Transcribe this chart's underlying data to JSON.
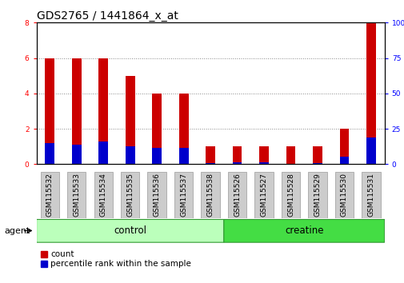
{
  "title": "GDS2765 / 1441864_x_at",
  "samples": [
    "GSM115532",
    "GSM115533",
    "GSM115534",
    "GSM115535",
    "GSM115536",
    "GSM115537",
    "GSM115538",
    "GSM115526",
    "GSM115527",
    "GSM115528",
    "GSM115529",
    "GSM115530",
    "GSM115531"
  ],
  "count": [
    6.0,
    6.0,
    6.0,
    5.0,
    4.0,
    4.0,
    1.0,
    1.0,
    1.0,
    1.0,
    1.0,
    2.0,
    8.0
  ],
  "percentile": [
    1.2,
    1.1,
    1.3,
    1.0,
    0.9,
    0.9,
    0.05,
    0.1,
    0.1,
    0.02,
    0.05,
    0.4,
    1.5
  ],
  "ylim_left": [
    0,
    8
  ],
  "ylim_right": [
    0,
    100
  ],
  "yticks_left": [
    0,
    2,
    4,
    6,
    8
  ],
  "yticks_right": [
    0,
    25,
    50,
    75,
    100
  ],
  "bar_color": "#cc0000",
  "percentile_color": "#0000cc",
  "bar_width": 0.35,
  "groups": [
    {
      "label": "control",
      "indices": [
        0,
        1,
        2,
        3,
        4,
        5,
        6
      ],
      "color": "#bbffbb"
    },
    {
      "label": "creatine",
      "indices": [
        7,
        8,
        9,
        10,
        11,
        12
      ],
      "color": "#44dd44"
    }
  ],
  "agent_label": "agent",
  "legend_count_label": "count",
  "legend_percentile_label": "percentile rank within the sample",
  "title_fontsize": 10,
  "tick_label_fontsize": 6.5,
  "axis_label_fontsize": 8,
  "group_label_fontsize": 8.5,
  "legend_fontsize": 7.5,
  "background_color": "#ffffff",
  "plot_bg_color": "#ffffff",
  "grid_color": "#888888",
  "spine_color": "#000000",
  "xtick_box_color": "#cccccc",
  "xtick_box_edge": "#999999"
}
